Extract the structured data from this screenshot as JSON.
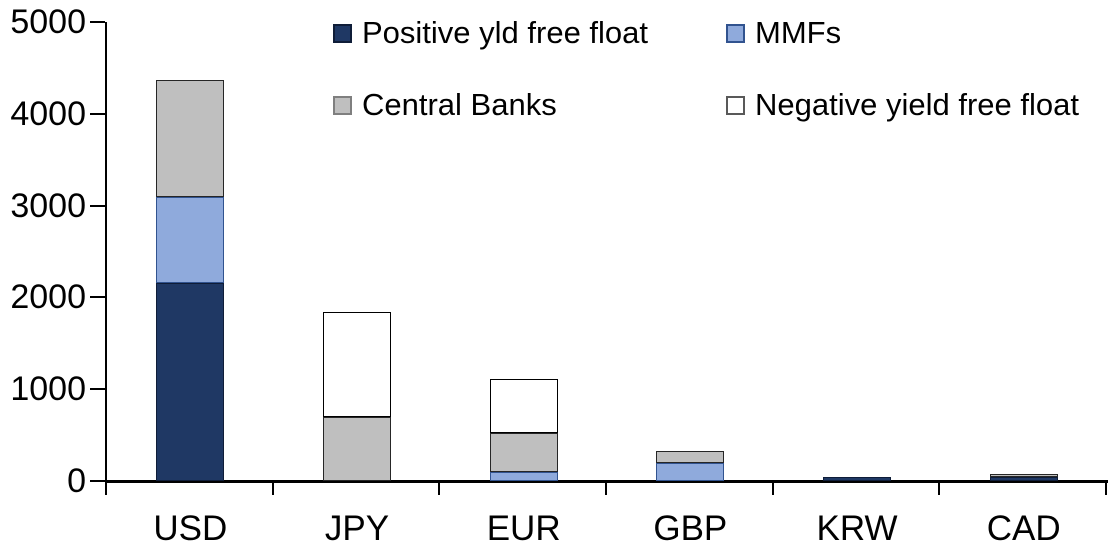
{
  "chart_data": {
    "type": "bar",
    "stacked": true,
    "title": "",
    "xlabel": "",
    "ylabel": "",
    "categories": [
      "USD",
      "JPY",
      "EUR",
      "GBP",
      "KRW",
      "CAD"
    ],
    "series": [
      {
        "name": "Positive yld free float",
        "color": "#1f3864",
        "border_color": "#0f1d38",
        "values": [
          2160,
          0,
          0,
          0,
          45,
          40
        ]
      },
      {
        "name": "MMFs",
        "color": "#8faadc",
        "border_color": "#31538f",
        "values": [
          930,
          0,
          100,
          200,
          0,
          0
        ]
      },
      {
        "name": "Central Banks",
        "color": "#bfbfbf",
        "border_color": "#262626",
        "values": [
          1280,
          700,
          425,
          125,
          0,
          40
        ]
      },
      {
        "name": "Negative yield free float",
        "color": "#ffffff",
        "border_color": "#000000",
        "values": [
          0,
          1140,
          585,
          0,
          0,
          0
        ]
      }
    ],
    "totals": [
      4370,
      1840,
      1110,
      325,
      45,
      80
    ],
    "ylim": [
      0,
      5000
    ],
    "ytick_step": 1000,
    "yticks": [
      "0",
      "1000",
      "2000",
      "3000",
      "4000",
      "5000"
    ],
    "grid": false,
    "legend_position": "top",
    "axis_color": "#000000",
    "text_color": "#000000"
  },
  "legend": {
    "items": [
      {
        "label": "Positive yld free float"
      },
      {
        "label": "MMFs"
      },
      {
        "label": "Central Banks"
      },
      {
        "label": "Negative yield free float"
      }
    ]
  }
}
